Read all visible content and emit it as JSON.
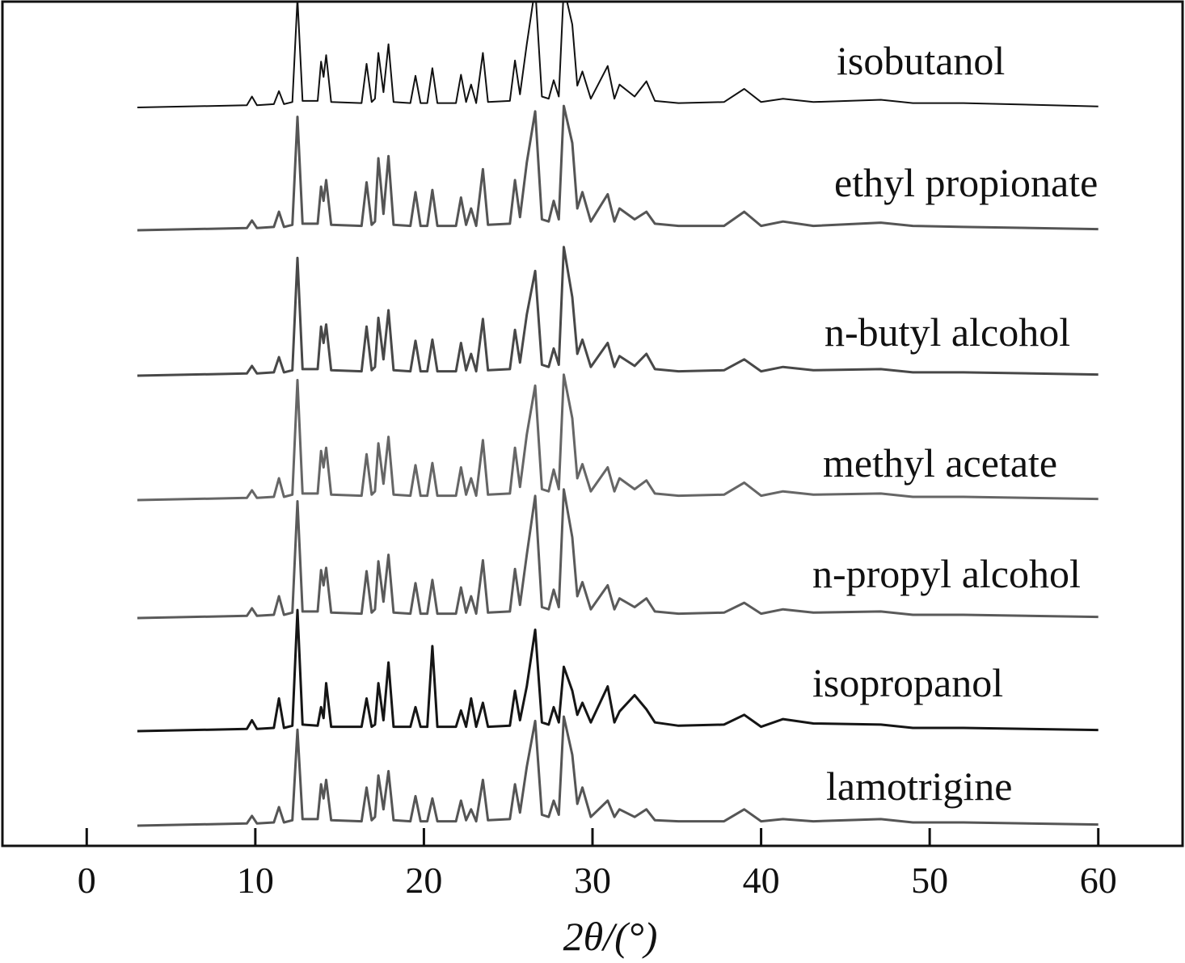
{
  "chart_data": {
    "type": "line",
    "x_label": "2θ/(°)",
    "x": [
      3,
      9.5,
      9.8,
      10.1,
      11.1,
      11.4,
      11.7,
      12.2,
      12.5,
      12.8,
      13.7,
      13.9,
      14.05,
      14.2,
      14.5,
      16.3,
      16.6,
      16.9,
      17.1,
      17.3,
      17.6,
      17.9,
      18.2,
      19.2,
      19.5,
      19.8,
      20.2,
      20.5,
      20.8,
      21.9,
      22.2,
      22.5,
      22.8,
      23.1,
      23.5,
      23.8,
      25.1,
      25.4,
      25.7,
      26.1,
      26.6,
      27.0,
      27.4,
      27.7,
      28.0,
      28.3,
      28.8,
      29.1,
      29.4,
      29.9,
      30.9,
      31.3,
      31.6,
      32.5,
      33.2,
      33.7,
      35.1,
      37.8,
      39.0,
      40.0,
      41.3,
      43.1,
      47.1,
      49.0,
      52.0,
      60
    ],
    "xlim": [
      -5,
      65
    ],
    "xticks": [
      0,
      10,
      20,
      30,
      40,
      50,
      60
    ],
    "series": [
      {
        "name": "isobutanol",
        "color": "#111111",
        "values": [
          0,
          2,
          10,
          2,
          3,
          15,
          3,
          5,
          100,
          6,
          6,
          42,
          28,
          48,
          5,
          4,
          40,
          5,
          8,
          50,
          14,
          58,
          5,
          4,
          29,
          4,
          4,
          36,
          4,
          4,
          30,
          5,
          21,
          4,
          50,
          5,
          6,
          43,
          12,
          58,
          110,
          10,
          8,
          25,
          10,
          110,
          76,
          20,
          33,
          8,
          38,
          8,
          21,
          10,
          24,
          6,
          4,
          5,
          17,
          5,
          8,
          5,
          7,
          4,
          4,
          1
        ]
      },
      {
        "name": "ethyl propionate",
        "color": "#555555",
        "values": [
          0,
          2,
          9,
          2,
          3,
          17,
          3,
          5,
          104,
          6,
          6,
          40,
          27,
          46,
          5,
          4,
          44,
          5,
          8,
          66,
          15,
          68,
          5,
          4,
          35,
          4,
          4,
          37,
          4,
          4,
          30,
          5,
          20,
          4,
          56,
          5,
          6,
          46,
          12,
          62,
          109,
          10,
          8,
          27,
          10,
          114,
          80,
          20,
          35,
          8,
          33,
          8,
          20,
          10,
          17,
          6,
          4,
          4,
          17,
          4,
          8,
          4,
          7,
          4,
          3,
          1
        ]
      },
      {
        "name": "n-butyl alcohol",
        "color": "#484848",
        "values": [
          0,
          2,
          9,
          2,
          3,
          17,
          3,
          5,
          108,
          6,
          6,
          45,
          30,
          47,
          5,
          4,
          45,
          5,
          8,
          53,
          15,
          60,
          5,
          4,
          32,
          4,
          4,
          33,
          4,
          4,
          30,
          5,
          20,
          4,
          52,
          5,
          6,
          42,
          12,
          56,
          96,
          10,
          8,
          25,
          10,
          118,
          72,
          20,
          33,
          8,
          30,
          8,
          18,
          9,
          20,
          6,
          4,
          5,
          15,
          4,
          8,
          5,
          6,
          3,
          3,
          1
        ]
      },
      {
        "name": "methyl acetate",
        "color": "#666666",
        "values": [
          0,
          2,
          9,
          2,
          3,
          20,
          3,
          5,
          110,
          6,
          6,
          45,
          30,
          48,
          5,
          4,
          42,
          5,
          8,
          52,
          15,
          58,
          5,
          4,
          32,
          4,
          4,
          34,
          4,
          4,
          30,
          5,
          20,
          4,
          55,
          5,
          6,
          48,
          12,
          60,
          105,
          10,
          8,
          28,
          10,
          115,
          75,
          20,
          33,
          8,
          30,
          8,
          20,
          10,
          18,
          6,
          4,
          5,
          16,
          4,
          8,
          5,
          6,
          3,
          3,
          1
        ]
      },
      {
        "name": "n-propyl alcohol",
        "color": "#5a5a5a",
        "values": [
          0,
          2,
          9,
          2,
          3,
          20,
          3,
          5,
          107,
          6,
          6,
          44,
          30,
          46,
          5,
          4,
          43,
          5,
          8,
          52,
          15,
          58,
          5,
          4,
          32,
          4,
          4,
          35,
          4,
          4,
          28,
          5,
          20,
          4,
          53,
          5,
          6,
          45,
          12,
          58,
          112,
          10,
          8,
          26,
          10,
          118,
          74,
          20,
          33,
          8,
          30,
          8,
          18,
          10,
          18,
          6,
          4,
          5,
          14,
          4,
          8,
          5,
          6,
          3,
          3,
          1
        ]
      },
      {
        "name": "isopropanol",
        "color": "#151515",
        "values": [
          0,
          2,
          10,
          2,
          3,
          30,
          3,
          5,
          111,
          6,
          5,
          22,
          12,
          44,
          4,
          4,
          30,
          4,
          6,
          44,
          10,
          63,
          4,
          4,
          22,
          4,
          4,
          78,
          4,
          4,
          19,
          4,
          30,
          4,
          26,
          4,
          5,
          37,
          10,
          41,
          93,
          8,
          6,
          22,
          8,
          59,
          37,
          15,
          26,
          8,
          41,
          8,
          18,
          33,
          20,
          8,
          5,
          6,
          15,
          4,
          11,
          7,
          6,
          3,
          3,
          1
        ]
      },
      {
        "name": "lamotrigine",
        "color": "#555555",
        "values": [
          0,
          2,
          9,
          2,
          3,
          17,
          3,
          5,
          88,
          6,
          6,
          38,
          25,
          42,
          5,
          4,
          35,
          5,
          8,
          46,
          15,
          50,
          5,
          4,
          27,
          4,
          4,
          25,
          4,
          4,
          23,
          5,
          15,
          4,
          42,
          5,
          6,
          38,
          12,
          54,
          96,
          10,
          8,
          23,
          10,
          100,
          65,
          20,
          35,
          8,
          23,
          8,
          15,
          8,
          15,
          5,
          4,
          4,
          15,
          4,
          6,
          4,
          6,
          3,
          3,
          1
        ]
      }
    ]
  }
}
